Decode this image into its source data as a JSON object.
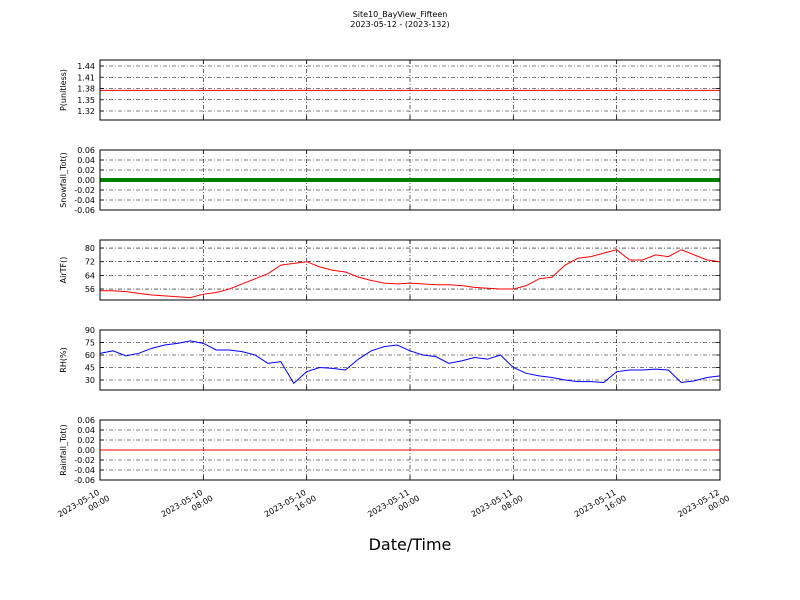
{
  "title": "Site10_BayView_Fifteen",
  "subtitle": "2023-05-12 - (2023-132)",
  "xlabel": "Date/Time",
  "xlim": [
    "2023-05-10 00:00",
    "2023-05-12 00:00"
  ],
  "xticks": [
    "2023-05-10 00:00",
    "2023-05-10 08:00",
    "2023-05-10 16:00",
    "2023-05-11 00:00",
    "2023-05-11 08:00",
    "2023-05-11 16:00",
    "2023-05-12 00:00"
  ],
  "x": [
    "2023-05-10 00:00",
    "2023-05-10 01:00",
    "2023-05-10 02:00",
    "2023-05-10 03:00",
    "2023-05-10 04:00",
    "2023-05-10 05:00",
    "2023-05-10 06:00",
    "2023-05-10 07:00",
    "2023-05-10 08:00",
    "2023-05-10 09:00",
    "2023-05-10 10:00",
    "2023-05-10 11:00",
    "2023-05-10 12:00",
    "2023-05-10 13:00",
    "2023-05-10 14:00",
    "2023-05-10 15:00",
    "2023-05-10 16:00",
    "2023-05-10 17:00",
    "2023-05-10 18:00",
    "2023-05-10 19:00",
    "2023-05-10 20:00",
    "2023-05-10 21:00",
    "2023-05-10 22:00",
    "2023-05-10 23:00",
    "2023-05-11 00:00",
    "2023-05-11 01:00",
    "2023-05-11 02:00",
    "2023-05-11 03:00",
    "2023-05-11 04:00",
    "2023-05-11 05:00",
    "2023-05-11 06:00",
    "2023-05-11 07:00",
    "2023-05-11 08:00",
    "2023-05-11 09:00",
    "2023-05-11 10:00",
    "2023-05-11 11:00",
    "2023-05-11 12:00",
    "2023-05-11 13:00",
    "2023-05-11 14:00",
    "2023-05-11 15:00",
    "2023-05-11 16:00",
    "2023-05-11 17:00",
    "2023-05-11 18:00",
    "2023-05-11 19:00",
    "2023-05-11 20:00",
    "2023-05-11 21:00",
    "2023-05-11 22:00",
    "2023-05-11 23:00",
    "2023-05-12 00:00"
  ],
  "chart_data": [
    {
      "type": "line",
      "ylabel": "P(unitless)",
      "ylim": [
        1.296,
        1.456
      ],
      "yticks": [
        1.32,
        1.35,
        1.38,
        1.41,
        1.44
      ],
      "grid": true,
      "series": [
        {
          "color": "#ff0000",
          "width": 1,
          "values": [
            1.375,
            1.375,
            1.375,
            1.375,
            1.375,
            1.375,
            1.375,
            1.375,
            1.375,
            1.375,
            1.375,
            1.375,
            1.375,
            1.375,
            1.375,
            1.375,
            1.375,
            1.375,
            1.375,
            1.375,
            1.375,
            1.375,
            1.375,
            1.375,
            1.375,
            1.375,
            1.375,
            1.375,
            1.375,
            1.375,
            1.375,
            1.375,
            1.375,
            1.375,
            1.375,
            1.375,
            1.375,
            1.375,
            1.375,
            1.375,
            1.375,
            1.375,
            1.375,
            1.375,
            1.375,
            1.375,
            1.375,
            1.375,
            1.375
          ]
        }
      ]
    },
    {
      "type": "line",
      "ylabel": "Snowfall_Tot()",
      "ylim": [
        -0.06,
        0.06
      ],
      "yticks": [
        -0.06,
        -0.04,
        -0.02,
        {
          "value": 0,
          "label": "0.00"
        },
        0.02,
        0.04,
        0.06
      ],
      "grid": true,
      "series": [
        {
          "color": "#007f00",
          "width": 4,
          "values": [
            0,
            0,
            0,
            0,
            0,
            0,
            0,
            0,
            0,
            0,
            0,
            0,
            0,
            0,
            0,
            0,
            0,
            0,
            0,
            0,
            0,
            0,
            0,
            0,
            0,
            0,
            0,
            0,
            0,
            0,
            0,
            0,
            0,
            0,
            0,
            0,
            0,
            0,
            0,
            0,
            0,
            0,
            0,
            0,
            0,
            0,
            0,
            0,
            0
          ]
        }
      ]
    },
    {
      "type": "line",
      "ylabel": "AirTF()",
      "ylim": [
        49.6,
        84.7
      ],
      "yticks": [
        56,
        64,
        72,
        80
      ],
      "grid": true,
      "series": [
        {
          "color": "#ff0000",
          "width": 1,
          "values": [
            55,
            55,
            54.5,
            53.5,
            52.5,
            52,
            51.5,
            51,
            53,
            54,
            56,
            59,
            62,
            65,
            70,
            71,
            72,
            69,
            67,
            66,
            63,
            61,
            59.5,
            59,
            59.5,
            59,
            58.5,
            58.5,
            58,
            57,
            56.5,
            56,
            56,
            58,
            62,
            63,
            70,
            74,
            75,
            77,
            79,
            73,
            73,
            76,
            75,
            79,
            76,
            73,
            72
          ]
        }
      ]
    },
    {
      "type": "line",
      "ylabel": "RH(%)",
      "ylim": [
        18,
        90
      ],
      "yticks": [
        30,
        45,
        60,
        75,
        90
      ],
      "grid": true,
      "series": [
        {
          "color": "#0000ff",
          "width": 1,
          "values": [
            62,
            65,
            59,
            62,
            68,
            72,
            74,
            77,
            74,
            66,
            66,
            64,
            60,
            50,
            52,
            26,
            40,
            45,
            44,
            42,
            55,
            65,
            70,
            72,
            65,
            60,
            58,
            50,
            53,
            57,
            55,
            60,
            45,
            38,
            35,
            33,
            30,
            28,
            28,
            27,
            40,
            42,
            42,
            43,
            42,
            27,
            29,
            33,
            35
          ]
        }
      ]
    },
    {
      "type": "line",
      "ylabel": "Rainfall_Tot()",
      "ylim": [
        -0.06,
        0.06
      ],
      "yticks": [
        -0.06,
        -0.04,
        -0.02,
        {
          "value": 0,
          "label": "0.00"
        },
        0.02,
        0.04,
        0.06
      ],
      "grid": true,
      "series": [
        {
          "color": "#ff0000",
          "width": 1,
          "values": [
            0,
            0,
            0,
            0,
            0,
            0,
            0,
            0,
            0,
            0,
            0,
            0,
            0,
            0,
            0,
            0,
            0,
            0,
            0,
            0,
            0,
            0,
            0,
            0,
            0,
            0,
            0,
            0,
            0,
            0,
            0,
            0,
            0,
            0,
            0,
            0,
            0,
            0,
            0,
            0,
            0,
            0,
            0,
            0,
            0,
            0,
            0,
            0,
            0
          ]
        }
      ]
    }
  ]
}
